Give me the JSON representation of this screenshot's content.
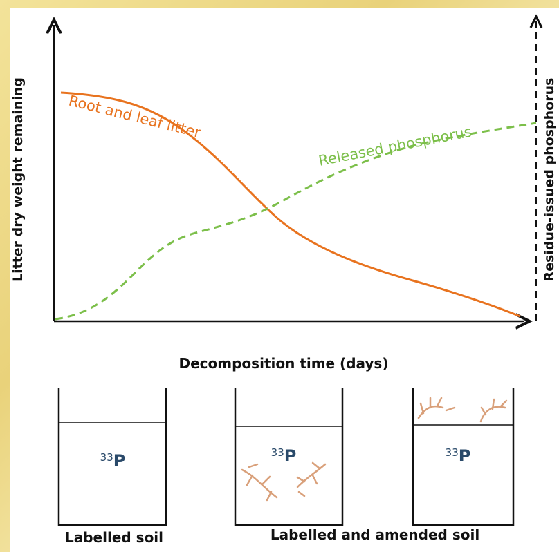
{
  "figure": {
    "y_axis_label": "Litter dry weight remaining",
    "y2_axis_label": "Residue-issued phosphorus",
    "x_axis_label": "Decomposition time (days)",
    "curves": [
      {
        "label": "Root and leaf litter"
      },
      {
        "label": "Released phosphorus"
      }
    ],
    "beakers": [
      {
        "mass": "33",
        "element": "P"
      },
      {
        "mass": "33",
        "element": "P"
      },
      {
        "mass": "33",
        "element": "P"
      }
    ],
    "captions": [
      "Labelled soil",
      "Labelled and amended soil"
    ]
  }
}
